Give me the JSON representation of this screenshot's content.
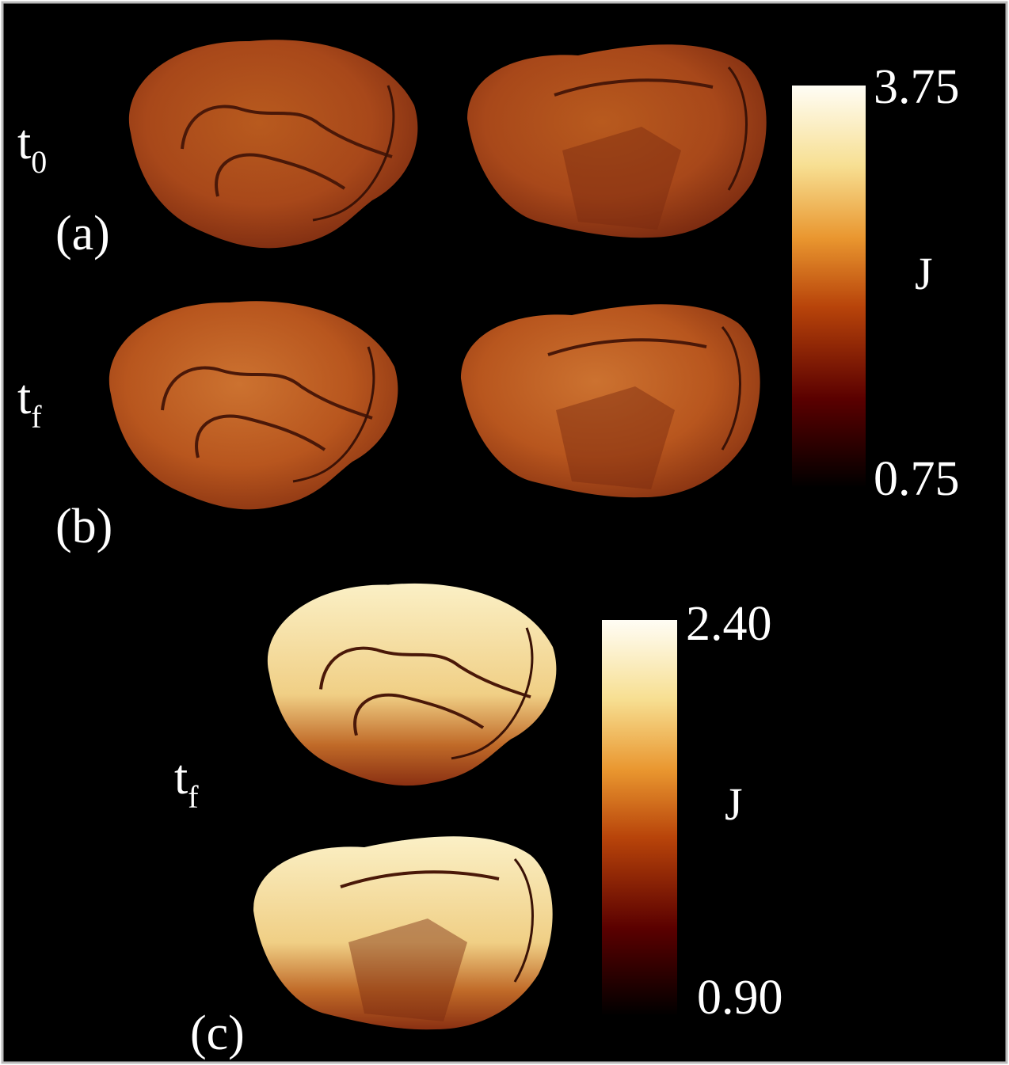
{
  "rows": [
    {
      "label": {
        "base": "t",
        "sub": "0"
      },
      "panel": "(a)"
    },
    {
      "label": {
        "base": "t",
        "sub": "f"
      },
      "panel": "(b)"
    },
    {
      "label": {
        "base": "t",
        "sub": "f"
      },
      "panel": "(c)"
    }
  ],
  "colorbars": [
    {
      "max": "3.75",
      "min": "0.75",
      "label": "J"
    },
    {
      "max": "2.40",
      "min": "0.90",
      "label": "J"
    }
  ]
}
